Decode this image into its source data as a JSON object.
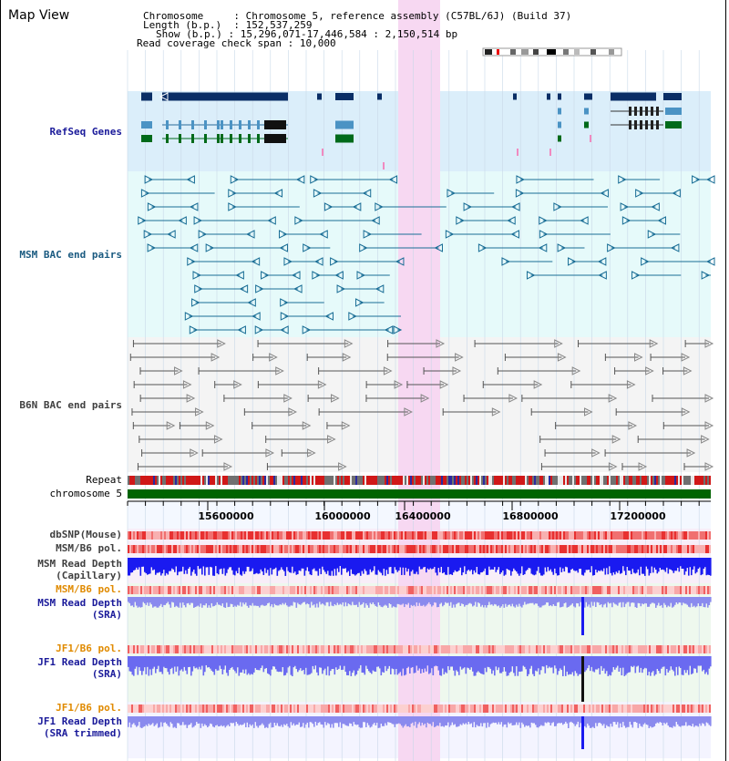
{
  "view_title": "Map View",
  "header": {
    "chromosome_label": "Chromosome",
    "chromosome_value": "Chromosome 5, reference assembly (C57BL/6J) (Build 37)",
    "length_label": "Length (b.p.)",
    "length_value": "152,537,259",
    "show_label": "Show (b.p.)",
    "show_value": "15,296,071-17,446,584 : 2,150,514 bp",
    "coverage_label": "Read coverage check span",
    "coverage_value": "10,000"
  },
  "tracks": {
    "refseq": "RefSeq Genes",
    "msm_bac": "MSM BAC end pairs",
    "b6n_bac": "B6N BAC end pairs",
    "repeat": "Repeat",
    "chromosome": "chromosome 5",
    "dbsnp": "dbSNP(Mouse)",
    "msm_b6_pol_1": "MSM/B6 pol.",
    "msm_depth_cap_1": "MSM Read Depth",
    "msm_depth_cap_2": "(Capillary)",
    "msm_b6_pol_2": "MSM/B6 pol.",
    "msm_depth_sra_1": "MSM Read Depth",
    "msm_depth_sra_2": "(SRA)",
    "jf1_b6_pol_1": "JF1/B6 pol.",
    "jf1_depth_sra_1": "JF1 Read Depth",
    "jf1_depth_sra_2": "(SRA)",
    "jf1_b6_pol_2": "JF1/B6 pol.",
    "jf1_depth_trim_1": "JF1 Read Depth",
    "jf1_depth_trim_2": "(SRA trimmed)"
  },
  "axis": {
    "ticks": [
      "15600000",
      "16000000",
      "16400000",
      "16800000",
      "17200000"
    ]
  },
  "colors": {
    "refseq_bg": "#dbeefa",
    "msm_bg": "#e6fafa",
    "b6n_bg": "#f4f4f4",
    "highlight": "#f7d8f2",
    "depth_blue": "#1a1aee",
    "depth_light": "#7a7aee",
    "chromosome_bar": "#006400"
  }
}
